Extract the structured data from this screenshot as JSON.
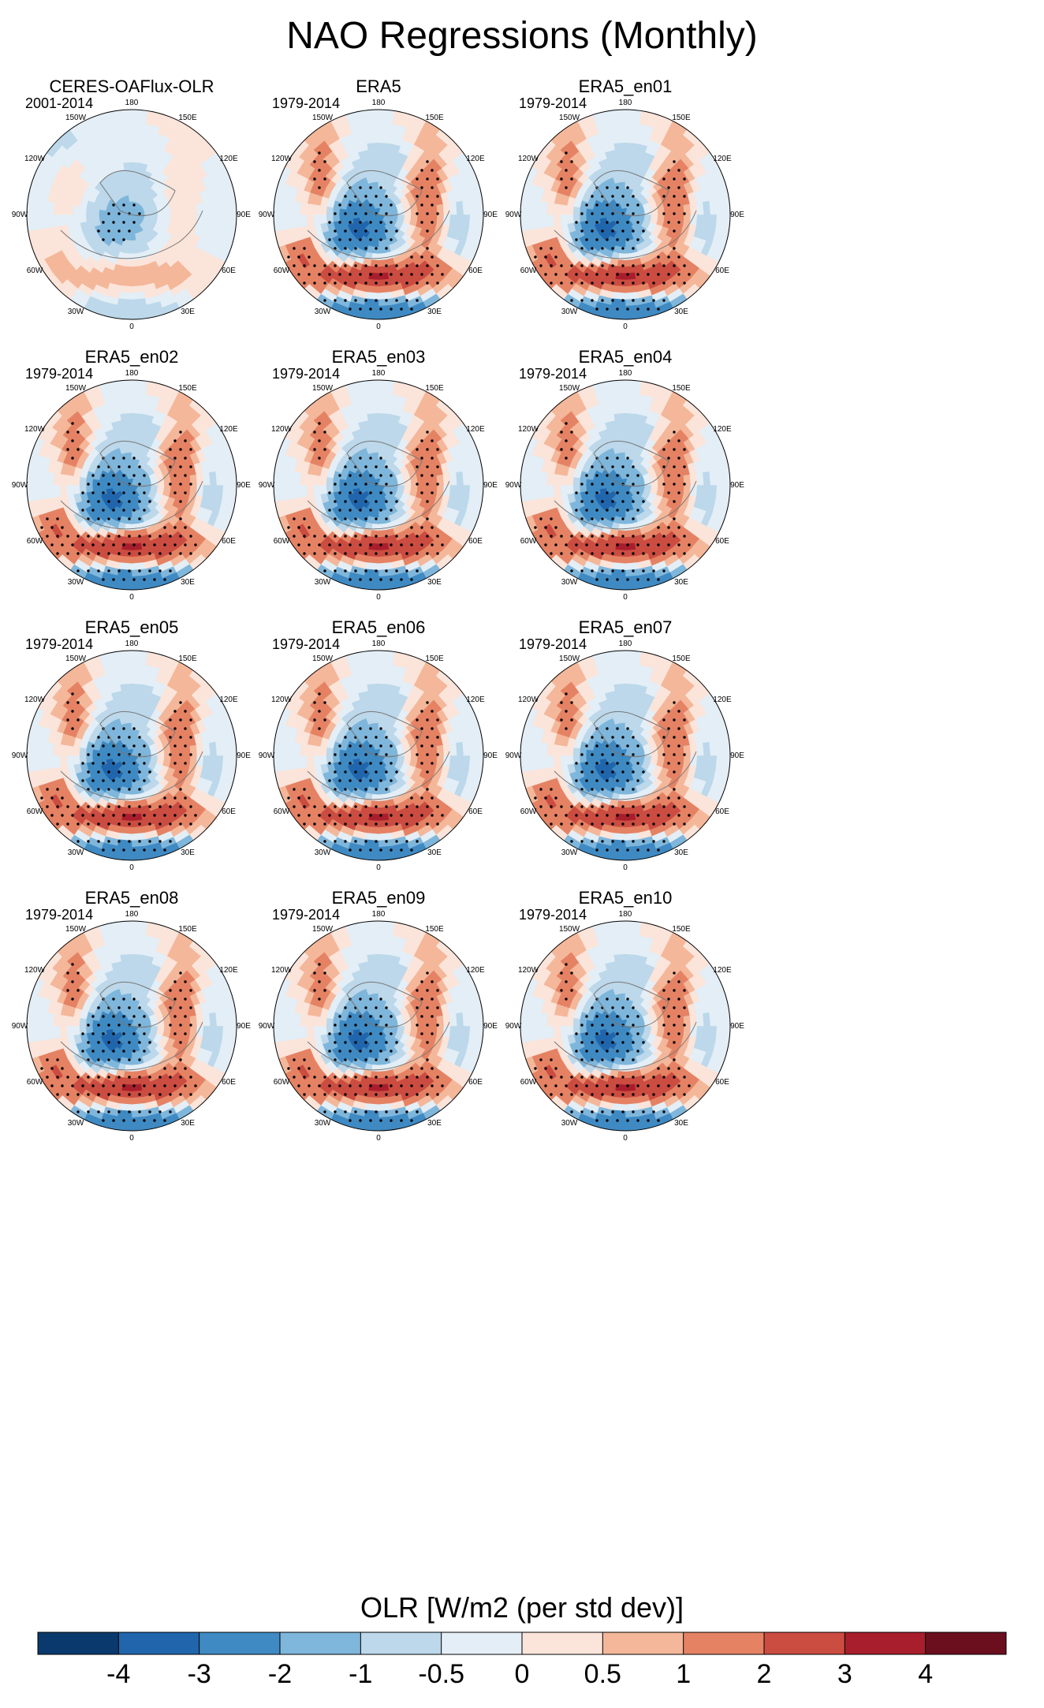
{
  "figure_title": "NAO Regressions (Monthly)",
  "colorbar": {
    "title": "OLR [W/m2 (per std dev)]",
    "ticks": [
      "-4",
      "-3",
      "-2",
      "-1",
      "-0.5",
      "0",
      "0.5",
      "1",
      "2",
      "3",
      "4"
    ],
    "colors": [
      "#0a3a6d",
      "#2166ac",
      "#3f8ac3",
      "#7fb6db",
      "#bcd8ea",
      "#e3eef6",
      "#fbe4da",
      "#f4b79a",
      "#e58264",
      "#cb4c41",
      "#a91e2c",
      "#6b0f1e"
    ]
  },
  "longitude_labels": [
    "180",
    "150E",
    "120E",
    "90E",
    "60E",
    "30E",
    "0",
    "30W",
    "60W",
    "90W",
    "120W",
    "150W"
  ],
  "chart_data": [
    {
      "type": "heatmap",
      "title": "CERES-OAFlux-OLR",
      "period": "2001-2014",
      "units": "W/m2 (per std dev)",
      "range": [
        -4,
        4
      ],
      "weight": 0.7,
      "variant": 1
    },
    {
      "type": "heatmap",
      "title": "ERA5",
      "period": "1979-2014",
      "units": "W/m2 (per std dev)",
      "range": [
        -4,
        4
      ],
      "weight": 1.0,
      "variant": 0
    },
    {
      "type": "heatmap",
      "title": "ERA5_en01",
      "period": "1979-2014",
      "units": "W/m2 (per std dev)",
      "range": [
        -4,
        4
      ],
      "weight": 1.0,
      "variant": 0
    },
    {
      "type": "heatmap",
      "title": "ERA5_en02",
      "period": "1979-2014",
      "units": "W/m2 (per std dev)",
      "range": [
        -4,
        4
      ],
      "weight": 1.0,
      "variant": 0
    },
    {
      "type": "heatmap",
      "title": "ERA5_en03",
      "period": "1979-2014",
      "units": "W/m2 (per std dev)",
      "range": [
        -4,
        4
      ],
      "weight": 1.0,
      "variant": 0
    },
    {
      "type": "heatmap",
      "title": "ERA5_en04",
      "period": "1979-2014",
      "units": "W/m2 (per std dev)",
      "range": [
        -4,
        4
      ],
      "weight": 1.0,
      "variant": 0
    },
    {
      "type": "heatmap",
      "title": "ERA5_en05",
      "period": "1979-2014",
      "units": "W/m2 (per std dev)",
      "range": [
        -4,
        4
      ],
      "weight": 1.0,
      "variant": 0
    },
    {
      "type": "heatmap",
      "title": "ERA5_en06",
      "period": "1979-2014",
      "units": "W/m2 (per std dev)",
      "range": [
        -4,
        4
      ],
      "weight": 1.0,
      "variant": 0
    },
    {
      "type": "heatmap",
      "title": "ERA5_en07",
      "period": "1979-2014",
      "units": "W/m2 (per std dev)",
      "range": [
        -4,
        4
      ],
      "weight": 1.0,
      "variant": 0
    },
    {
      "type": "heatmap",
      "title": "ERA5_en08",
      "period": "1979-2014",
      "units": "W/m2 (per std dev)",
      "range": [
        -4,
        4
      ],
      "weight": 1.0,
      "variant": 0
    },
    {
      "type": "heatmap",
      "title": "ERA5_en09",
      "period": "1979-2014",
      "units": "W/m2 (per std dev)",
      "range": [
        -4,
        4
      ],
      "weight": 1.0,
      "variant": 0
    },
    {
      "type": "heatmap",
      "title": "ERA5_en10",
      "period": "1979-2014",
      "units": "W/m2 (per std dev)",
      "range": [
        -4,
        4
      ],
      "weight": 1.0,
      "variant": 0
    }
  ]
}
